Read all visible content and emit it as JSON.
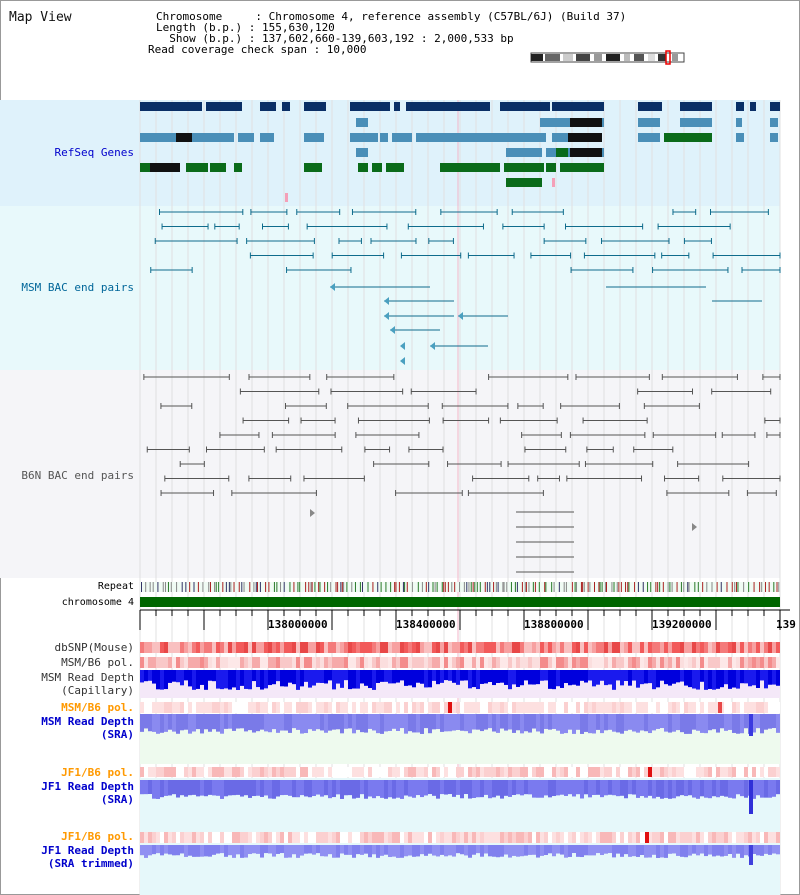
{
  "header": {
    "title": "Map View",
    "chromosome_line": "Chromosome     : Chromosome 4, reference assembly (C57BL/6J) (Build 37)",
    "length_line": "Length (b.p.) : 155,630,120",
    "show_line": "  Show (b.p.) : 137,602,660-139,603,192 : 2,000,533 bp",
    "coverage_line": "Read coverage check span : 10,000"
  },
  "tracks": {
    "refseq": "RefSeq Genes",
    "msm_bac": "MSM BAC end pairs",
    "b6n_bac": "B6N BAC end pairs",
    "repeat": "Repeat",
    "chromosome": "chromosome 4"
  },
  "axis": {
    "ticks": [
      "138000000",
      "138400000",
      "138800000",
      "139200000",
      "139"
    ]
  },
  "lower_tracks": [
    {
      "label": "dbSNP(Mouse)",
      "color": "#333333"
    },
    {
      "label": "MSM/B6 pol.",
      "color": "#333333"
    },
    {
      "label": "MSM Read Depth",
      "color": "#333333"
    },
    {
      "label": "(Capillary)",
      "color": "#333333"
    },
    {
      "label": "MSM/B6 pol.",
      "color": "#ff9900"
    },
    {
      "label": "MSM Read Depth",
      "color": "#0000cc"
    },
    {
      "label": "(SRA)",
      "color": "#0000cc"
    },
    {
      "label": "JF1/B6 pol.",
      "color": "#ff9900"
    },
    {
      "label": "JF1 Read Depth",
      "color": "#0000cc"
    },
    {
      "label": "(SRA)",
      "color": "#0000cc"
    },
    {
      "label": "JF1/B6 pol.",
      "color": "#ff9900"
    },
    {
      "label": "JF1 Read Depth",
      "color": "#0000cc"
    },
    {
      "label": "(SRA trimmed)",
      "color": "#0000cc"
    }
  ]
}
